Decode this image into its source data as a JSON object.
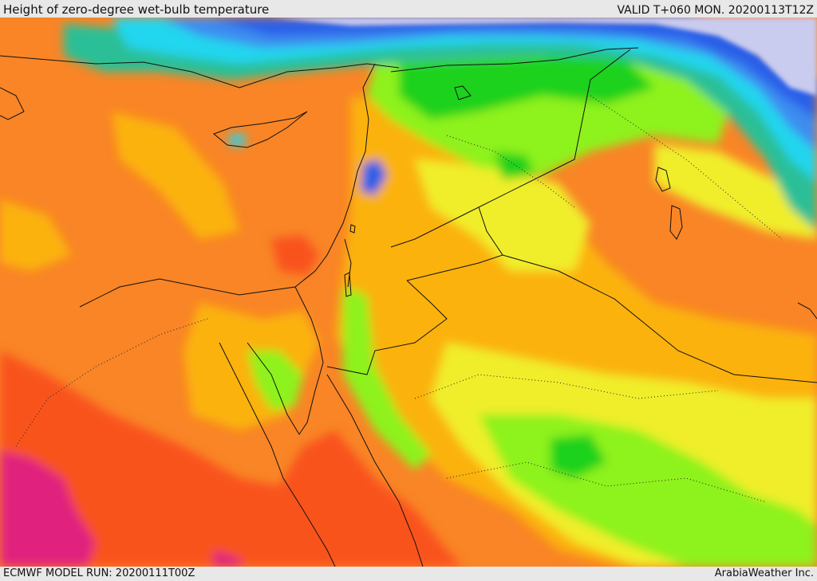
{
  "header": {
    "title": "Height of zero-degree wet-bulb temperature",
    "valid": "VALID T+060 MON. 20200113T12Z"
  },
  "footer": {
    "model_run": "ECMWF MODEL RUN: 20200111T00Z",
    "credit": "ArabiaWeather Inc."
  },
  "colors": {
    "snow_lavender": "#c9cbef",
    "deep_blue": "#2c5fe8",
    "blue": "#3e8cf0",
    "cyan": "#22d6ef",
    "teal": "#2bbf96",
    "green": "#1fd21f",
    "light_green": "#8ef21a",
    "yellow_green": "#d4f22a",
    "yellow": "#f0ee2c",
    "orange_yellow": "#fbb20a",
    "orange": "#f98526",
    "red_orange": "#f9521c",
    "magenta": "#e0207e",
    "boundary": "#111111"
  }
}
